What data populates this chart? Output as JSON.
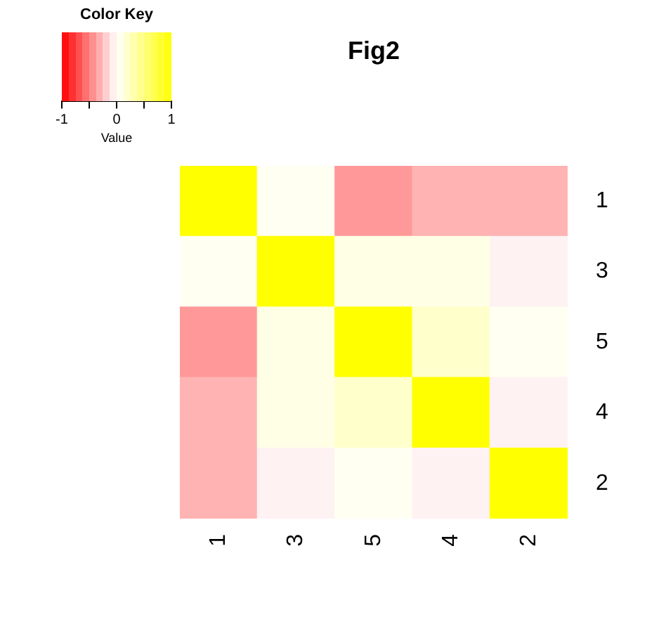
{
  "chart_data": {
    "type": "heatmap",
    "title": "Fig2",
    "legend_title": "Color Key",
    "clabel": "Value",
    "categories": [
      "1",
      "3",
      "5",
      "4",
      "2"
    ],
    "y_categories": [
      "1",
      "3",
      "5",
      "4",
      "2"
    ],
    "cells": [
      [
        1,
        0.05,
        -0.4,
        -0.3,
        -0.3
      ],
      [
        0.05,
        1,
        0.1,
        0.1,
        -0.05
      ],
      [
        -0.4,
        0.1,
        1,
        0.2,
        0.05
      ],
      [
        -0.3,
        0.1,
        0.2,
        1,
        -0.05
      ],
      [
        -0.3,
        -0.05,
        0.05,
        -0.05,
        1
      ]
    ],
    "clim": [
      -1,
      1
    ],
    "cticks": [
      -1,
      {
        "value": -0.5,
        "label": null
      },
      0,
      {
        "value": 0.5,
        "label": null
      },
      1
    ]
  }
}
